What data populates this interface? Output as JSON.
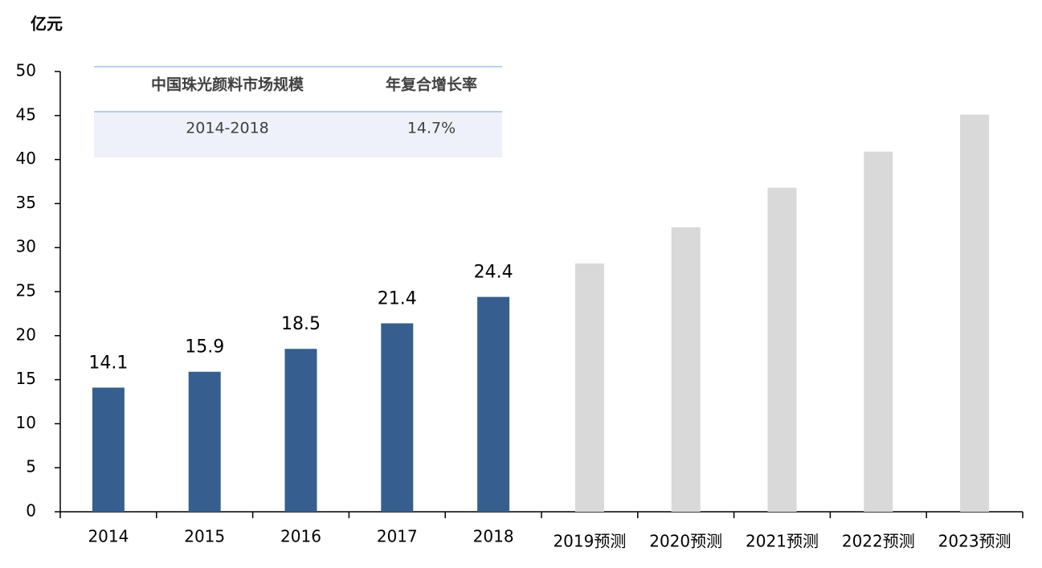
{
  "chart_data": {
    "type": "bar",
    "unit": "亿元",
    "categories": [
      "2014",
      "2015",
      "2016",
      "2017",
      "2018",
      "2019预测",
      "2020预测",
      "2021预测",
      "2022预测",
      "2023预测"
    ],
    "values": [
      14.1,
      15.9,
      18.5,
      21.4,
      24.4,
      28.2,
      32.3,
      36.8,
      40.9,
      45.1
    ],
    "colors": [
      "#365f8f",
      "#365f8f",
      "#365f8f",
      "#365f8f",
      "#365f8f",
      "#d9d9d9",
      "#d9d9d9",
      "#d9d9d9",
      "#d9d9d9",
      "#d9d9d9"
    ],
    "show_labels": [
      true,
      true,
      true,
      true,
      true,
      false,
      false,
      false,
      false,
      false
    ],
    "ylim": [
      0,
      50
    ],
    "yticks": [
      0,
      5,
      10,
      15,
      20,
      25,
      30,
      35,
      40,
      45,
      50
    ],
    "grid": false,
    "table": {
      "header": [
        "中国珠光颜料市场规模",
        "年复合增长率"
      ],
      "rows": [
        [
          "2014-2018",
          "14.7%"
        ]
      ]
    }
  }
}
